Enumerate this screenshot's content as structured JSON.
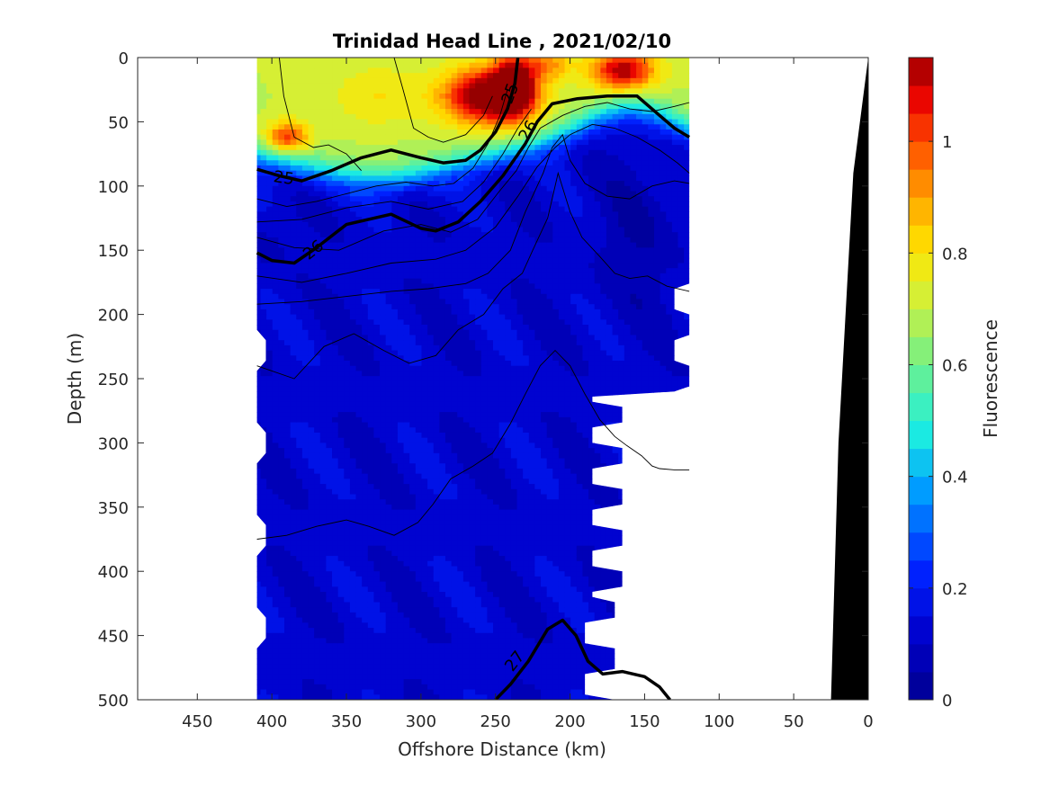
{
  "chart_data": {
    "type": "heatmap",
    "title": "Trinidad Head Line , 2021/02/10",
    "xlabel": "Offshore Distance (km)",
    "ylabel": "Depth (m)",
    "colorbar_label": "Fluorescence",
    "xlim": [
      490,
      0
    ],
    "ylim": [
      0,
      500
    ],
    "x_ticks": [
      "450",
      "400",
      "350",
      "300",
      "250",
      "200",
      "150",
      "100",
      "50",
      "0"
    ],
    "y_ticks": [
      "0",
      "50",
      "100",
      "150",
      "200",
      "250",
      "300",
      "350",
      "400",
      "450",
      "500"
    ],
    "cbar_ticks": [
      "0",
      "0.2",
      "0.4",
      "0.6",
      "0.8",
      "1"
    ],
    "cbar_range": [
      0,
      1.15
    ],
    "colormap": "jet",
    "data_x_extent_km": [
      410,
      120
    ],
    "contour_labels": [
      "25",
      "25",
      "26",
      "26",
      "27"
    ],
    "bold_isopycnals": [
      {
        "label": "25",
        "x": [
          410,
          395,
          380,
          360,
          340,
          320,
          300,
          285,
          270,
          260,
          250,
          242,
          237,
          235
        ],
        "y": [
          87,
          92,
          96,
          88,
          78,
          72,
          78,
          82,
          80,
          72,
          58,
          40,
          20,
          0
        ]
      },
      {
        "label": "26",
        "x": [
          410,
          400,
          385,
          370,
          350,
          320,
          300,
          290,
          275,
          260,
          245,
          230,
          222,
          212,
          195,
          175,
          155,
          140,
          130,
          120
        ],
        "y": [
          152,
          158,
          160,
          148,
          130,
          122,
          133,
          135,
          128,
          112,
          92,
          67,
          50,
          36,
          32,
          30,
          30,
          45,
          55,
          62
        ]
      },
      {
        "label": "27",
        "x": [
          250,
          240,
          228,
          215,
          205,
          196,
          188,
          178,
          165,
          150,
          140,
          133
        ],
        "y": [
          500,
          488,
          470,
          445,
          438,
          450,
          470,
          480,
          478,
          482,
          490,
          500
        ]
      }
    ],
    "thin_isopycnals": [
      {
        "x": [
          395,
          392,
          385,
          372,
          362,
          350,
          340
        ],
        "y": [
          0,
          30,
          62,
          70,
          68,
          75,
          88
        ]
      },
      {
        "x": [
          318,
          312,
          305,
          295,
          285,
          270,
          258,
          252
        ],
        "y": [
          0,
          25,
          55,
          62,
          66,
          60,
          45,
          30
        ]
      },
      {
        "x": [
          410,
          390,
          370,
          350,
          330,
          310,
          292,
          278,
          265,
          255,
          247,
          242
        ],
        "y": [
          110,
          116,
          112,
          106,
          100,
          97,
          100,
          98,
          86,
          67,
          45,
          25
        ]
      },
      {
        "x": [
          410,
          380,
          350,
          320,
          295,
          272,
          258,
          245,
          235,
          226
        ],
        "y": [
          128,
          126,
          117,
          112,
          118,
          112,
          97,
          75,
          55,
          40
        ]
      },
      {
        "x": [
          410,
          385,
          355,
          325,
          300,
          280,
          262,
          248,
          236,
          228,
          220,
          205,
          190,
          175,
          160,
          145,
          130,
          120
        ],
        "y": [
          140,
          148,
          150,
          135,
          130,
          136,
          126,
          105,
          88,
          70,
          55,
          45,
          38,
          35,
          40,
          42,
          38,
          35
        ]
      },
      {
        "x": [
          410,
          380,
          350,
          320,
          290,
          270,
          250,
          235,
          222,
          210,
          200,
          185,
          170,
          155,
          140,
          128,
          120
        ],
        "y": [
          170,
          175,
          168,
          160,
          157,
          150,
          132,
          108,
          85,
          70,
          60,
          52,
          55,
          62,
          72,
          82,
          90
        ]
      },
      {
        "x": [
          410,
          380,
          350,
          320,
          295,
          270,
          255,
          240,
          230,
          218,
          212,
          205,
          200,
          190,
          175,
          160,
          145,
          130,
          120
        ],
        "y": [
          192,
          190,
          186,
          182,
          180,
          176,
          168,
          150,
          120,
          90,
          70,
          60,
          80,
          98,
          108,
          110,
          100,
          96,
          98
        ]
      },
      {
        "x": [
          410,
          385,
          365,
          345,
          325,
          308,
          290,
          275,
          258,
          245,
          232,
          225,
          215,
          208,
          200,
          192,
          180,
          170,
          160,
          148,
          135,
          120
        ],
        "y": [
          240,
          250,
          225,
          215,
          228,
          238,
          232,
          212,
          200,
          180,
          168,
          150,
          125,
          90,
          120,
          140,
          155,
          168,
          172,
          170,
          178,
          182
        ]
      },
      {
        "x": [
          410,
          390,
          370,
          350,
          335,
          318,
          302,
          292,
          280,
          265,
          252,
          240,
          230,
          220,
          210,
          200,
          190,
          180,
          170,
          162,
          152,
          145,
          140,
          130,
          120
        ],
        "y": [
          375,
          372,
          365,
          360,
          365,
          372,
          362,
          348,
          328,
          318,
          308,
          285,
          262,
          240,
          228,
          240,
          262,
          282,
          295,
          302,
          310,
          318,
          320,
          321,
          321
        ]
      }
    ],
    "shelf_profile": {
      "x": [
        0,
        10,
        20,
        25,
        30
      ],
      "y": [
        0,
        90,
        300,
        500,
        500
      ]
    }
  }
}
